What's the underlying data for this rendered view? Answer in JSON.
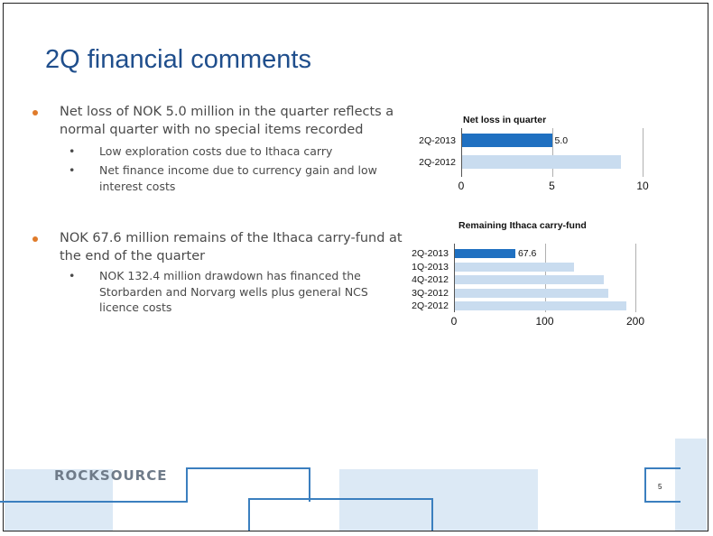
{
  "slide": {
    "title": "2Q financial comments",
    "page_number": "5",
    "logo": "ROCKSOURCE"
  },
  "bullets": [
    {
      "text": "Net loss of NOK 5.0 million in the quarter reflects a normal quarter with no special items recorded",
      "subs": [
        "Low exploration costs due to Ithaca carry",
        "Net finance income due to currency gain and low interest costs"
      ]
    },
    {
      "text": "NOK 67.6 million remains of the Ithaca carry-fund at the end of the quarter",
      "subs": [
        "NOK 132.4 million drawdown has financed the Storbarden and Norvarg wells plus general NCS licence costs"
      ]
    }
  ],
  "bullet_glyph": "•",
  "colors": {
    "title": "#1f4e8c",
    "bullet_dot": "#e07b2a",
    "bar_current": "#1f70c1",
    "bar_previous": "#c9dcef",
    "text": "#4a4a4a"
  },
  "chart_data": [
    {
      "type": "bar",
      "orientation": "horizontal",
      "title": "Net loss in quarter",
      "categories": [
        "2Q-2013",
        "2Q-2012"
      ],
      "values": [
        5.0,
        8.8
      ],
      "data_labels": [
        "5.0",
        ""
      ],
      "xlim": [
        0,
        10
      ],
      "ticks": [
        "0",
        "5",
        "10"
      ],
      "grid": true,
      "legend": "none"
    },
    {
      "type": "bar",
      "orientation": "horizontal",
      "title": "Remaining Ithaca carry-fund",
      "categories": [
        "2Q-2013",
        "1Q-2013",
        "4Q-2012",
        "3Q-2012",
        "2Q-2012"
      ],
      "values": [
        67.6,
        132,
        165,
        170,
        190
      ],
      "data_labels": [
        "67.6",
        "",
        "",
        "",
        ""
      ],
      "xlim": [
        0,
        200
      ],
      "ticks": [
        "0",
        "100",
        "200"
      ],
      "grid": true,
      "legend": "none"
    }
  ]
}
